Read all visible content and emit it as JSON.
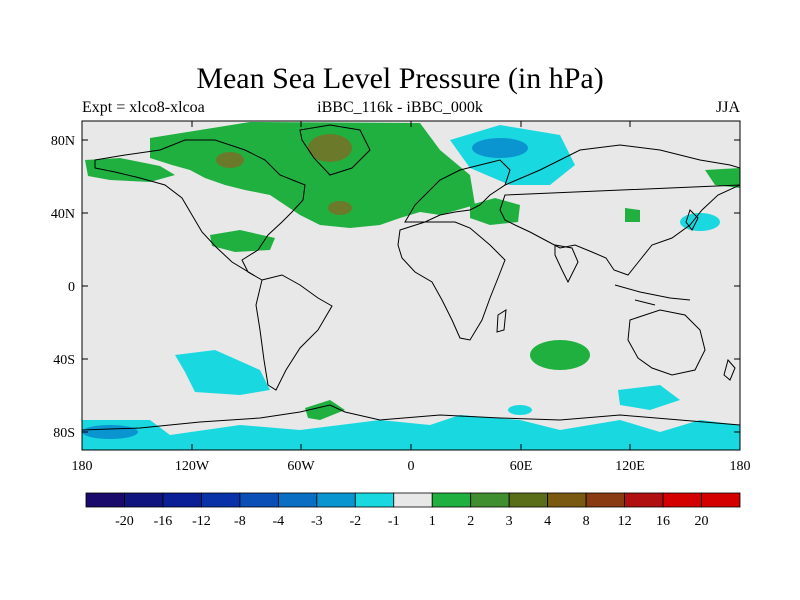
{
  "title": "Mean Sea Level Pressure (in hPa)",
  "subtitle_left": "Expt = xlco8-xlcoa",
  "subtitle_center": "iBBC_116k - iBBC_000k",
  "subtitle_right": "JJA",
  "axes": {
    "lat_labels": [
      "80N",
      "40N",
      "0",
      "40S",
      "80S"
    ],
    "lon_labels": [
      "180",
      "120W",
      "60W",
      "0",
      "60E",
      "120E",
      "180"
    ]
  },
  "colorbar": {
    "labels": [
      "-20",
      "-16",
      "-12",
      "-8",
      "-4",
      "-3",
      "-2",
      "-1",
      "1",
      "2",
      "3",
      "4",
      "8",
      "12",
      "16",
      "20"
    ],
    "colors": [
      "#1a0a6b",
      "#10147e",
      "#0a1f96",
      "#0a32a8",
      "#0a4fb5",
      "#0a6fc3",
      "#0a95d0",
      "#1ad8e0",
      "#e8e8e8",
      "#20b040",
      "#3f8f30",
      "#5a6e1a",
      "#7a5a10",
      "#8a3a10",
      "#b01010",
      "#d40000"
    ]
  },
  "colors": {
    "background": "#e8e8e8",
    "positive": "#20b040",
    "positive_strong": "#6a7a2a",
    "negative": "#1ad8e0",
    "negative_strong": "#0a95d0"
  }
}
